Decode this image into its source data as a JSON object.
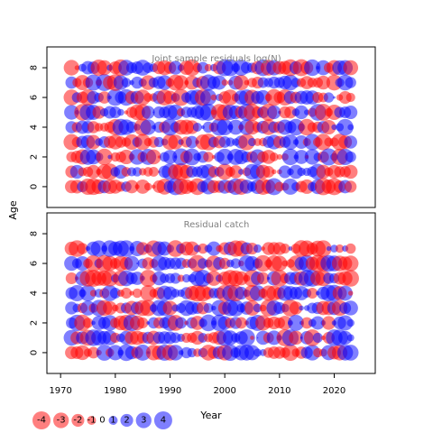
{
  "chart_data": [
    {
      "type": "scatter",
      "title": "Joint sample residuals log(N)",
      "xlabel": "Year",
      "ylabel": "Age",
      "x_range": [
        1972,
        2023
      ],
      "xlim": [
        1967.5,
        2027.5
      ],
      "ylim": [
        -1.4,
        9.4
      ],
      "yticks": [
        0,
        2,
        4,
        6,
        8
      ],
      "ages": [
        0,
        1,
        2,
        3,
        4,
        5,
        6,
        7,
        8
      ],
      "encoding": "bubble area proportional to |residual|; red = negative, blue = positive",
      "colors": {
        "negative": "#ff0000",
        "positive": "#0000ff"
      },
      "seed": 11,
      "note": "dense bubble field; individual residual values estimated"
    },
    {
      "type": "scatter",
      "title": "Residual catch",
      "xlabel": "Year",
      "ylabel": "Age",
      "x_range": [
        1972,
        2023
      ],
      "xlim": [
        1967.5,
        2027.5
      ],
      "ylim": [
        -1.4,
        9.4
      ],
      "yticks": [
        0,
        2,
        4,
        6,
        8
      ],
      "xticks": [
        1970,
        1980,
        1990,
        2000,
        2010,
        2020
      ],
      "ages": [
        0,
        1,
        2,
        3,
        4,
        5,
        6,
        7
      ],
      "encoding": "bubble area proportional to |residual|; red = negative, blue = positive",
      "colors": {
        "negative": "#ff0000",
        "positive": "#0000ff"
      },
      "seed": 29,
      "note": "dense bubble field; individual residual values estimated"
    }
  ],
  "legend": {
    "values": [
      -4,
      -3,
      -2,
      -1,
      0,
      1,
      2,
      3,
      4
    ],
    "labels": [
      "-4",
      "-3",
      "-2",
      "-1",
      "0",
      "1",
      "2",
      "3",
      "4"
    ]
  },
  "axes": {
    "ylabel": "Age",
    "xlabel": "Year"
  }
}
